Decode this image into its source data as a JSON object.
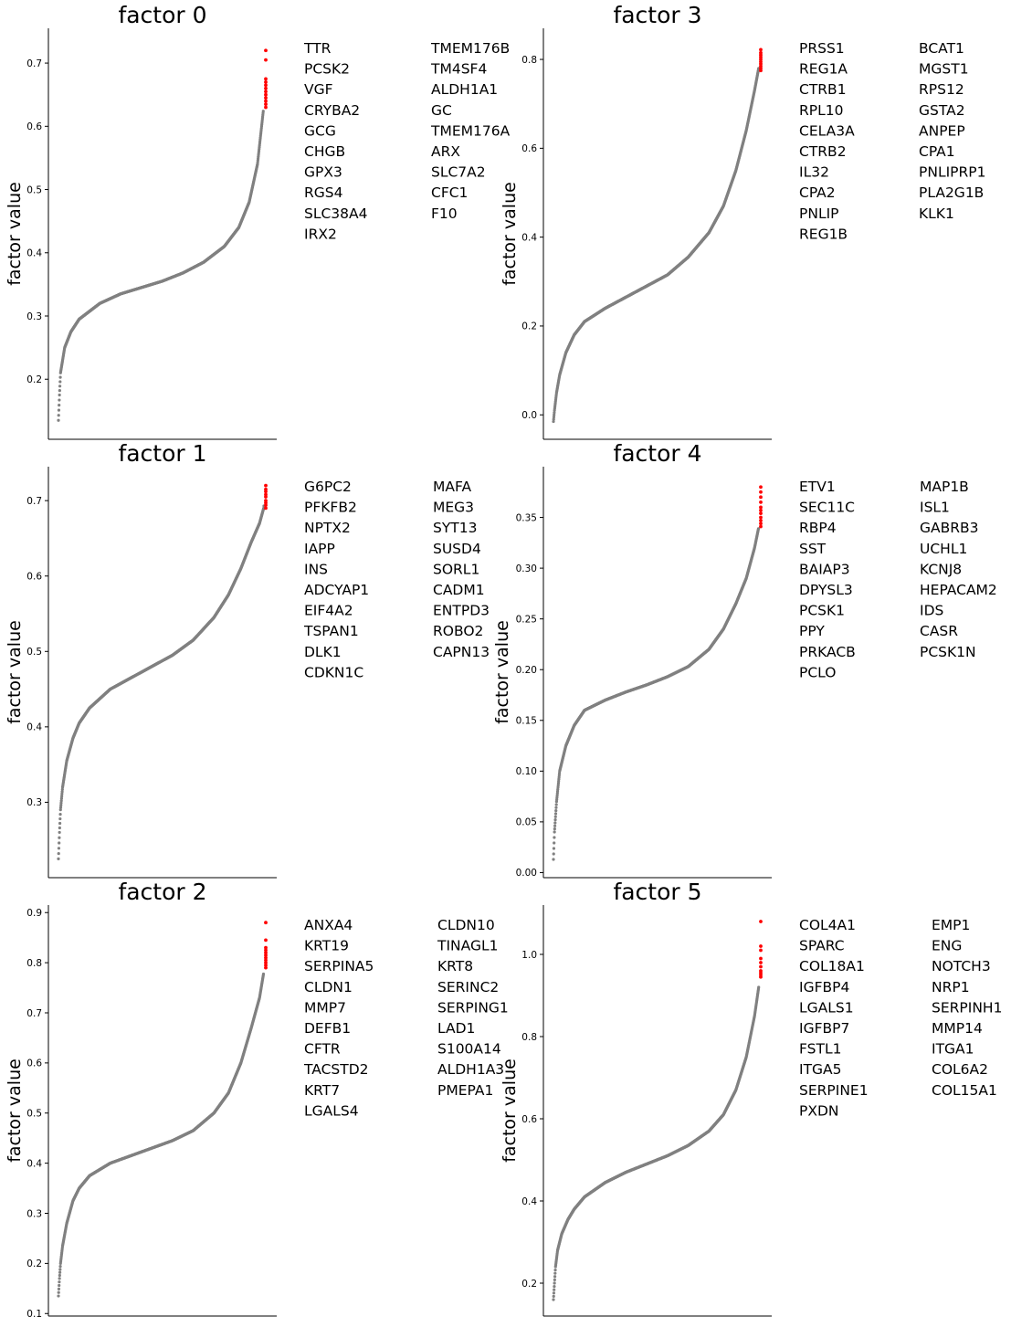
{
  "chart_data": [
    {
      "type": "scatter",
      "title": "factor 0",
      "ylabel": "factor value",
      "xlabel": "",
      "ylim": [
        0.105,
        0.755
      ],
      "yticks": [
        0.2,
        0.3,
        0.4,
        0.5,
        0.6,
        0.7
      ],
      "grid": false,
      "n_points": 1000,
      "curve_keypoints": [
        [
          0,
          0.135
        ],
        [
          0.005,
          0.175
        ],
        [
          0.01,
          0.21
        ],
        [
          0.03,
          0.25
        ],
        [
          0.06,
          0.275
        ],
        [
          0.1,
          0.295
        ],
        [
          0.2,
          0.32
        ],
        [
          0.3,
          0.335
        ],
        [
          0.4,
          0.345
        ],
        [
          0.5,
          0.355
        ],
        [
          0.6,
          0.368
        ],
        [
          0.7,
          0.385
        ],
        [
          0.8,
          0.41
        ],
        [
          0.87,
          0.44
        ],
        [
          0.92,
          0.48
        ],
        [
          0.96,
          0.54
        ],
        [
          0.98,
          0.6
        ],
        [
          0.99,
          0.63
        ],
        [
          1.0,
          0.72
        ]
      ],
      "highlighted_top_values": [
        0.72,
        0.705,
        0.675,
        0.67,
        0.665,
        0.66,
        0.655,
        0.65,
        0.645,
        0.64,
        0.635,
        0.63
      ],
      "colors": {
        "points": "#808080",
        "highlight": "#ff0000"
      },
      "genes": [
        "TTR",
        "PCSK2",
        "VGF",
        "CRYBA2",
        "GCG",
        "CHGB",
        "GPX3",
        "RGS4",
        "SLC38A4",
        "IRX2",
        "TMEM176B",
        "TM4SF4",
        "ALDH1A1",
        "GC",
        "TMEM176A",
        "ARX",
        "SLC7A2",
        "CFC1",
        "F10"
      ]
    },
    {
      "type": "scatter",
      "title": "factor 3",
      "ylabel": "factor value",
      "xlabel": "",
      "ylim": [
        -0.055,
        0.87
      ],
      "yticks": [
        0.0,
        0.2,
        0.4,
        0.6,
        0.8
      ],
      "grid": false,
      "n_points": 1000,
      "curve_keypoints": [
        [
          0,
          -0.015
        ],
        [
          0.005,
          0.01
        ],
        [
          0.015,
          0.05
        ],
        [
          0.03,
          0.09
        ],
        [
          0.06,
          0.14
        ],
        [
          0.1,
          0.18
        ],
        [
          0.15,
          0.21
        ],
        [
          0.25,
          0.24
        ],
        [
          0.35,
          0.265
        ],
        [
          0.45,
          0.29
        ],
        [
          0.55,
          0.315
        ],
        [
          0.65,
          0.355
        ],
        [
          0.75,
          0.41
        ],
        [
          0.82,
          0.47
        ],
        [
          0.88,
          0.55
        ],
        [
          0.93,
          0.64
        ],
        [
          0.97,
          0.73
        ],
        [
          0.99,
          0.78
        ],
        [
          1.0,
          0.82
        ]
      ],
      "highlighted_top_values": [
        0.822,
        0.815,
        0.81,
        0.805,
        0.8,
        0.795,
        0.79,
        0.785,
        0.78,
        0.775
      ],
      "colors": {
        "points": "#808080",
        "highlight": "#ff0000"
      },
      "genes": [
        "PRSS1",
        "REG1A",
        "CTRB1",
        "RPL10",
        "CELA3A",
        "CTRB2",
        "IL32",
        "CPA2",
        "PNLIP",
        "REG1B",
        "BCAT1",
        "MGST1",
        "RPS12",
        "GSTA2",
        "ANPEP",
        "CPA1",
        "PNLIPRP1",
        "PLA2G1B",
        "KLK1"
      ]
    },
    {
      "type": "scatter",
      "title": "factor 1",
      "ylabel": "factor value",
      "xlabel": "",
      "ylim": [
        0.2,
        0.745
      ],
      "yticks": [
        0.3,
        0.4,
        0.5,
        0.6,
        0.7
      ],
      "grid": false,
      "n_points": 1000,
      "curve_keypoints": [
        [
          0,
          0.225
        ],
        [
          0.005,
          0.26
        ],
        [
          0.01,
          0.29
        ],
        [
          0.02,
          0.32
        ],
        [
          0.04,
          0.355
        ],
        [
          0.07,
          0.385
        ],
        [
          0.1,
          0.405
        ],
        [
          0.15,
          0.425
        ],
        [
          0.25,
          0.45
        ],
        [
          0.35,
          0.465
        ],
        [
          0.45,
          0.48
        ],
        [
          0.55,
          0.495
        ],
        [
          0.65,
          0.515
        ],
        [
          0.75,
          0.545
        ],
        [
          0.82,
          0.575
        ],
        [
          0.88,
          0.61
        ],
        [
          0.93,
          0.645
        ],
        [
          0.97,
          0.67
        ],
        [
          0.99,
          0.69
        ],
        [
          1.0,
          0.72
        ]
      ],
      "highlighted_top_values": [
        0.72,
        0.715,
        0.712,
        0.708,
        0.705,
        0.7,
        0.697,
        0.694,
        0.69
      ],
      "colors": {
        "points": "#808080",
        "highlight": "#ff0000"
      },
      "genes": [
        "G6PC2",
        "PFKFB2",
        "NPTX2",
        "IAPP",
        "INS",
        "ADCYAP1",
        "EIF4A2",
        "TSPAN1",
        "DLK1",
        "CDKN1C",
        "MAFA",
        "MEG3",
        "SYT13",
        "SUSD4",
        "SORL1",
        "CADM1",
        "ENTPD3",
        "ROBO2",
        "CAPN13"
      ]
    },
    {
      "type": "scatter",
      "title": "factor 4",
      "ylabel": "factor value",
      "xlabel": "",
      "ylim": [
        -0.005,
        0.4
      ],
      "yticks": [
        0.0,
        0.05,
        0.1,
        0.15,
        0.2,
        0.25,
        0.3,
        0.35
      ],
      "ytick_labels": [
        "0.00",
        "0.05",
        "0.10",
        "0.15",
        "0.20",
        "0.25",
        "0.30",
        "0.35"
      ],
      "grid": false,
      "n_points": 1000,
      "curve_keypoints": [
        [
          0,
          0.013
        ],
        [
          0.005,
          0.04
        ],
        [
          0.015,
          0.07
        ],
        [
          0.03,
          0.1
        ],
        [
          0.06,
          0.125
        ],
        [
          0.1,
          0.145
        ],
        [
          0.15,
          0.16
        ],
        [
          0.25,
          0.17
        ],
        [
          0.35,
          0.178
        ],
        [
          0.45,
          0.185
        ],
        [
          0.55,
          0.193
        ],
        [
          0.65,
          0.203
        ],
        [
          0.75,
          0.22
        ],
        [
          0.82,
          0.24
        ],
        [
          0.88,
          0.265
        ],
        [
          0.93,
          0.29
        ],
        [
          0.97,
          0.32
        ],
        [
          0.99,
          0.34
        ],
        [
          1.0,
          0.38
        ]
      ],
      "highlighted_top_values": [
        0.38,
        0.375,
        0.37,
        0.365,
        0.36,
        0.357,
        0.354,
        0.35,
        0.347,
        0.344,
        0.341
      ],
      "colors": {
        "points": "#808080",
        "highlight": "#ff0000"
      },
      "genes": [
        "ETV1",
        "SEC11C",
        "RBP4",
        "SST",
        "BAIAP3",
        "DPYSL3",
        "PCSK1",
        "PPY",
        "PRKACB",
        "PCLO",
        "MAP1B",
        "ISL1",
        "GABRB3",
        "UCHL1",
        "KCNJ8",
        "HEPACAM2",
        "IDS",
        "CASR",
        "PCSK1N"
      ]
    },
    {
      "type": "scatter",
      "title": "factor 2",
      "ylabel": "factor value",
      "xlabel": "",
      "ylim": [
        0.095,
        0.915
      ],
      "yticks": [
        0.1,
        0.2,
        0.3,
        0.4,
        0.5,
        0.6,
        0.7,
        0.8,
        0.9
      ],
      "grid": false,
      "n_points": 1000,
      "curve_keypoints": [
        [
          0,
          0.135
        ],
        [
          0.005,
          0.17
        ],
        [
          0.01,
          0.2
        ],
        [
          0.02,
          0.235
        ],
        [
          0.04,
          0.28
        ],
        [
          0.07,
          0.325
        ],
        [
          0.1,
          0.35
        ],
        [
          0.15,
          0.375
        ],
        [
          0.25,
          0.4
        ],
        [
          0.35,
          0.415
        ],
        [
          0.45,
          0.43
        ],
        [
          0.55,
          0.445
        ],
        [
          0.65,
          0.465
        ],
        [
          0.75,
          0.5
        ],
        [
          0.82,
          0.54
        ],
        [
          0.88,
          0.6
        ],
        [
          0.93,
          0.67
        ],
        [
          0.97,
          0.73
        ],
        [
          0.99,
          0.78
        ],
        [
          1.0,
          0.88
        ]
      ],
      "highlighted_top_values": [
        0.88,
        0.845,
        0.83,
        0.825,
        0.82,
        0.815,
        0.81,
        0.805,
        0.8,
        0.795,
        0.79
      ],
      "colors": {
        "points": "#808080",
        "highlight": "#ff0000"
      },
      "genes": [
        "ANXA4",
        "KRT19",
        "SERPINA5",
        "CLDN1",
        "MMP7",
        "DEFB1",
        "CFTR",
        "TACSTD2",
        "KRT7",
        "LGALS4",
        "CLDN10",
        "TINAGL1",
        "KRT8",
        "SERINC2",
        "SERPING1",
        "LAD1",
        "S100A14",
        "ALDH1A3",
        "PMEPA1"
      ]
    },
    {
      "type": "scatter",
      "title": "factor 5",
      "ylabel": "factor value",
      "xlabel": "",
      "ylim": [
        0.12,
        1.12
      ],
      "yticks": [
        0.2,
        0.4,
        0.6,
        0.8,
        1.0
      ],
      "grid": false,
      "n_points": 1000,
      "curve_keypoints": [
        [
          0,
          0.16
        ],
        [
          0.005,
          0.2
        ],
        [
          0.01,
          0.24
        ],
        [
          0.02,
          0.28
        ],
        [
          0.04,
          0.32
        ],
        [
          0.07,
          0.355
        ],
        [
          0.1,
          0.38
        ],
        [
          0.15,
          0.41
        ],
        [
          0.25,
          0.445
        ],
        [
          0.35,
          0.47
        ],
        [
          0.45,
          0.49
        ],
        [
          0.55,
          0.51
        ],
        [
          0.65,
          0.535
        ],
        [
          0.75,
          0.57
        ],
        [
          0.82,
          0.61
        ],
        [
          0.88,
          0.67
        ],
        [
          0.93,
          0.75
        ],
        [
          0.97,
          0.85
        ],
        [
          0.99,
          0.92
        ],
        [
          1.0,
          1.08
        ]
      ],
      "highlighted_top_values": [
        1.08,
        1.02,
        1.01,
        0.99,
        0.98,
        0.97,
        0.96,
        0.955,
        0.95,
        0.945
      ],
      "colors": {
        "points": "#808080",
        "highlight": "#ff0000"
      },
      "genes": [
        "COL4A1",
        "SPARC",
        "COL18A1",
        "IGFBP4",
        "LGALS1",
        "IGFBP7",
        "FSTL1",
        "ITGA5",
        "SERPINE1",
        "PXDN",
        "EMP1",
        "ENG",
        "NOTCH3",
        "NRP1",
        "SERPINH1",
        "MMP14",
        "ITGA1",
        "COL6A2",
        "COL15A1"
      ]
    }
  ]
}
